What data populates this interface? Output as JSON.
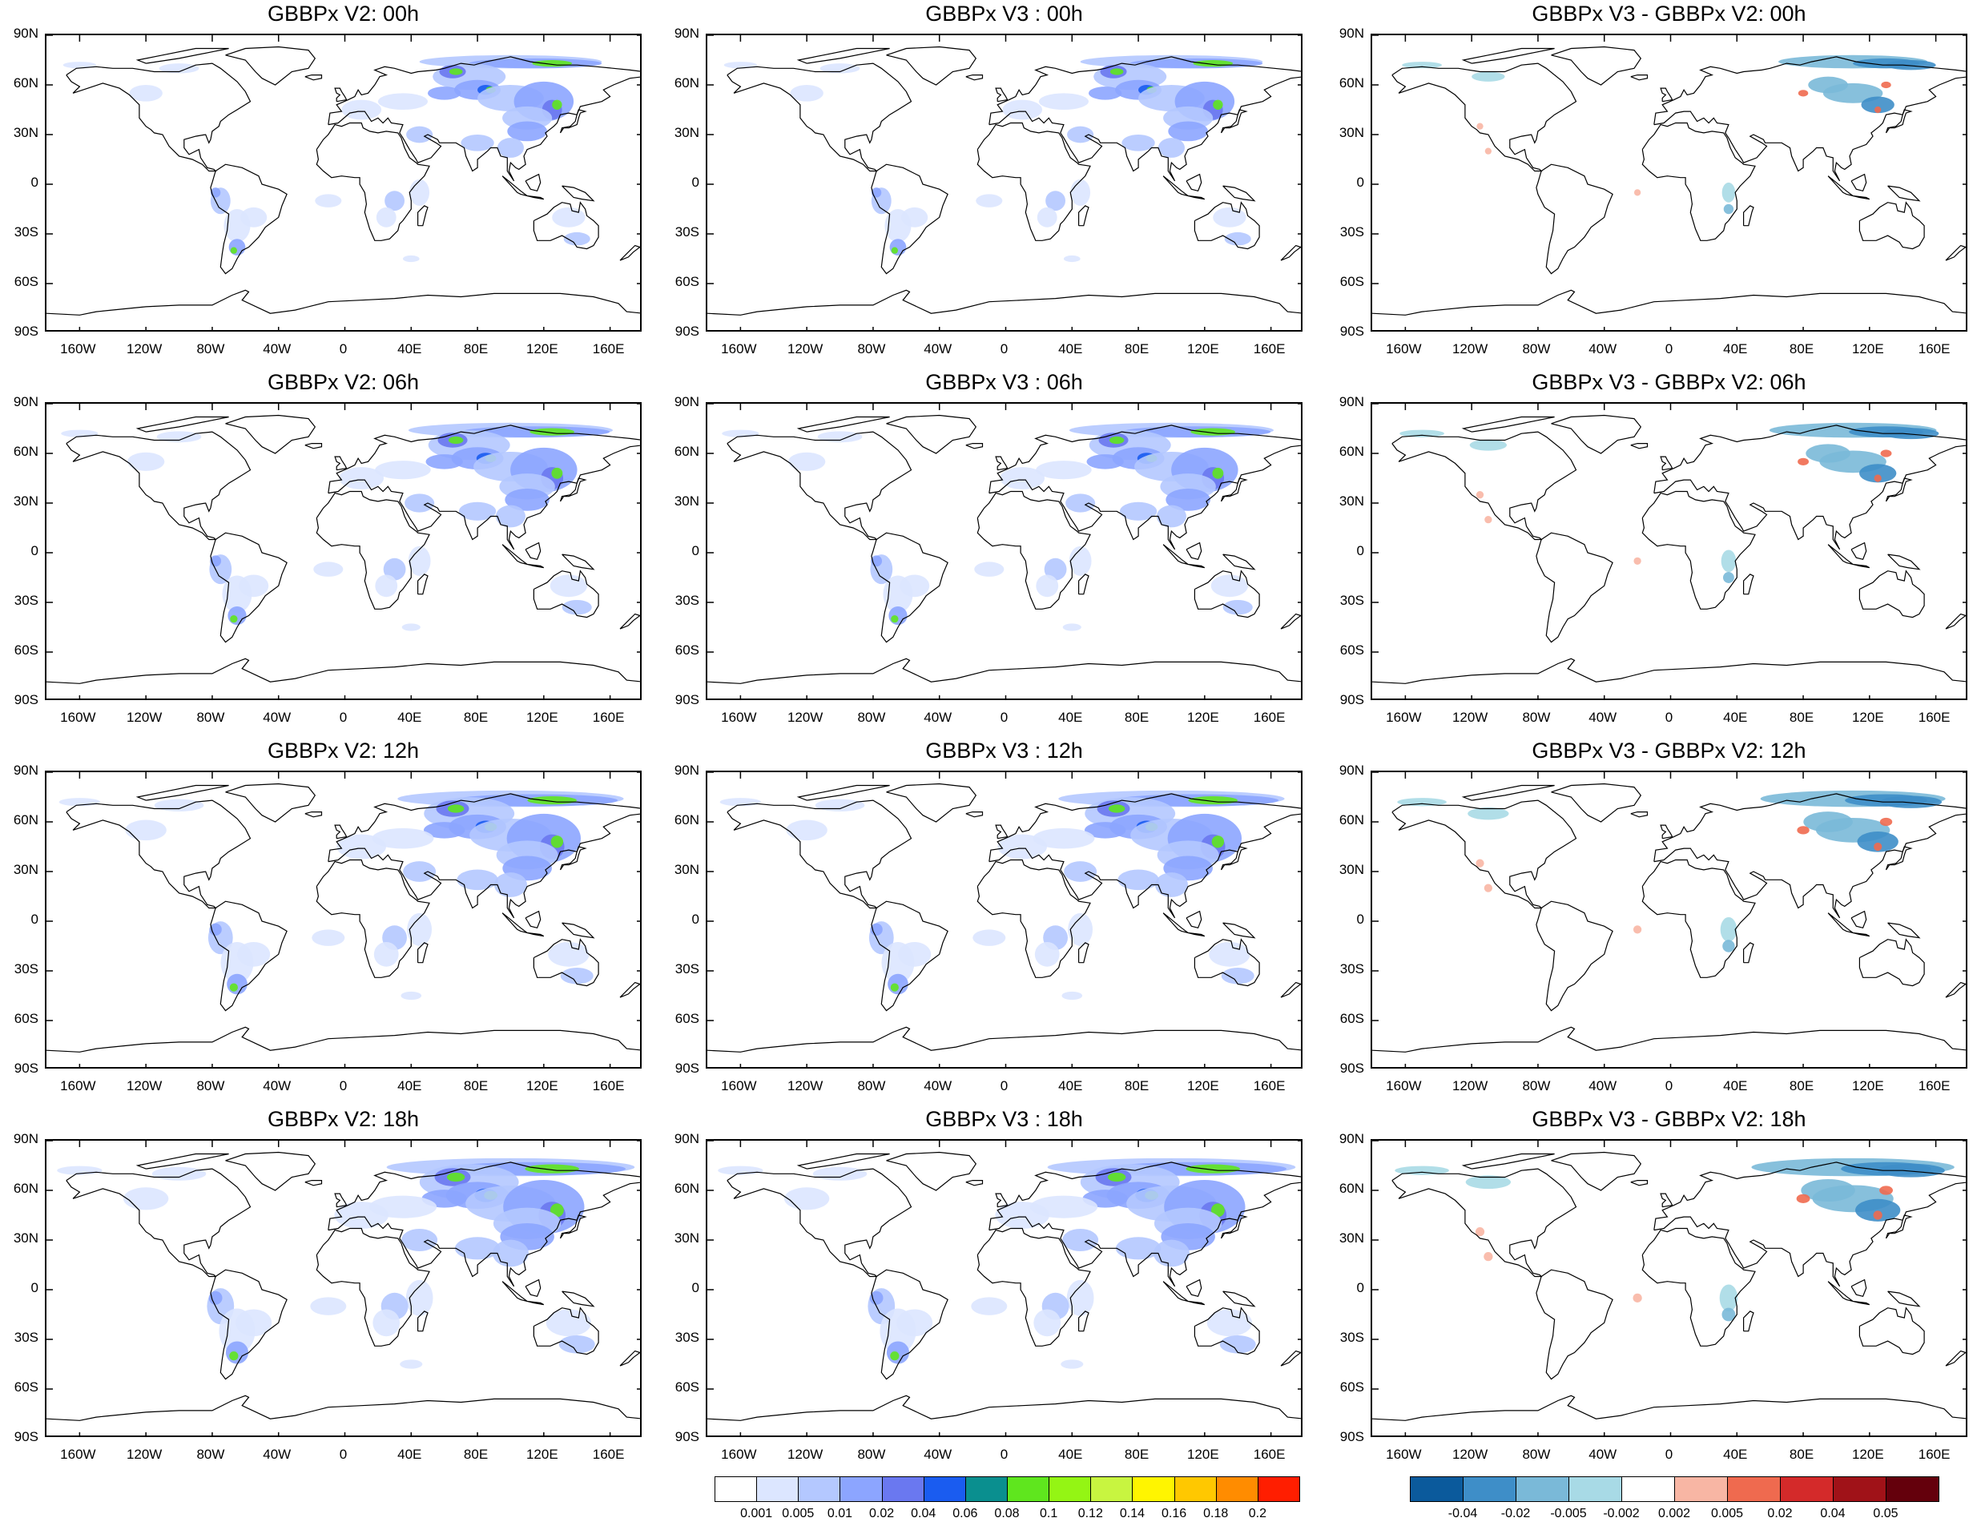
{
  "panels": [
    {
      "title": "GBBPx V2: 00h",
      "kind": "abs"
    },
    {
      "title": "GBBPx V3 : 00h",
      "kind": "abs"
    },
    {
      "title": "GBBPx V3 - GBBPx V2: 00h",
      "kind": "diff"
    },
    {
      "title": "GBBPx V2: 06h",
      "kind": "abs"
    },
    {
      "title": "GBBPx V3 : 06h",
      "kind": "abs"
    },
    {
      "title": "GBBPx V3 - GBBPx V2: 06h",
      "kind": "diff"
    },
    {
      "title": "GBBPx V2: 12h",
      "kind": "abs"
    },
    {
      "title": "GBBPx V3 : 12h",
      "kind": "abs"
    },
    {
      "title": "GBBPx V3 - GBBPx V2: 12h",
      "kind": "diff"
    },
    {
      "title": "GBBPx V2: 18h",
      "kind": "abs"
    },
    {
      "title": "GBBPx V3 : 18h",
      "kind": "abs"
    },
    {
      "title": "GBBPx V3 - GBBPx V2: 18h",
      "kind": "diff"
    }
  ],
  "lat_labels": [
    "90N",
    "60N",
    "30N",
    "0",
    "30S",
    "60S",
    "90S"
  ],
  "lon_labels": [
    "160W",
    "120W",
    "80W",
    "40W",
    "0",
    "40E",
    "80E",
    "120E",
    "160E"
  ],
  "colorbar_abs": {
    "labels": [
      "0.001",
      "0.005",
      "0.01",
      "0.02",
      "0.04",
      "0.06",
      "0.08",
      "0.1",
      "0.12",
      "0.14",
      "0.16",
      "0.18",
      "0.2"
    ],
    "colors": [
      "#ffffff",
      "#dce6ff",
      "#b4c8ff",
      "#8ca5ff",
      "#6a78f0",
      "#1a5cf0",
      "#0a8f8f",
      "#5fe61e",
      "#94f514",
      "#c8f540",
      "#fff500",
      "#ffc800",
      "#ff8c00",
      "#ff1e00"
    ]
  },
  "colorbar_diff": {
    "labels": [
      "-0.04",
      "-0.02",
      "-0.005",
      "-0.002",
      "0.002",
      "0.005",
      "0.02",
      "0.04",
      "0.05"
    ],
    "colors": [
      "#0b5a9c",
      "#3e8ec8",
      "#7ab9d8",
      "#a8dae6",
      "#ffffff",
      "#f8b6a4",
      "#ef6a4f",
      "#d42a2a",
      "#a01218",
      "#64000c"
    ]
  }
}
